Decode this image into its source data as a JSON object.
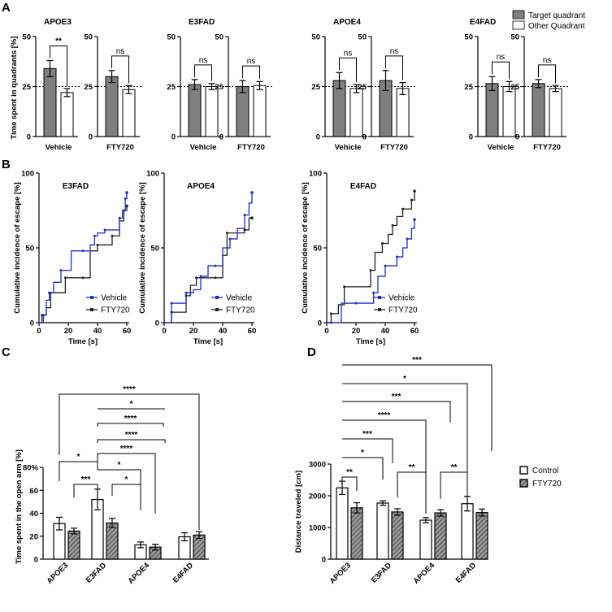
{
  "panels": {
    "a": "A",
    "b": "B",
    "c": "C",
    "d": "D"
  },
  "colors": {
    "gray_bar": "#7f7f7f",
    "vehicle_line": "#1f2ec7",
    "fty_line": "#222222",
    "hatch": "#555555"
  },
  "panel_a": {
    "ylabel": "Time spent in quadrants [%]",
    "legend": [
      "Target quadrant",
      "Other Quadrant"
    ],
    "genotypes": [
      "APOE3",
      "E3FAD",
      "APOE4",
      "E4FAD"
    ],
    "conditions": [
      "Vehicle",
      "FTY720"
    ],
    "yticks": [
      "0",
      "25",
      "50"
    ]
  },
  "chart_data": [
    {
      "type": "bar",
      "panel": "A",
      "title": "Time spent in quadrants",
      "ylabel": "Time spent in quadrants [%]",
      "ylim": [
        0,
        50
      ],
      "reference_line": 25,
      "series_names": [
        "Target quadrant",
        "Other Quadrant"
      ],
      "groups": [
        {
          "genotype": "APOE3",
          "condition": "Vehicle",
          "target": 34,
          "target_err": 4,
          "other": 22,
          "other_err": 2,
          "sig": "**"
        },
        {
          "genotype": "APOE3",
          "condition": "FTY720",
          "target": 30,
          "target_err": 3,
          "other": 23.5,
          "other_err": 2,
          "sig": "ns"
        },
        {
          "genotype": "E3FAD",
          "condition": "Vehicle",
          "target": 26,
          "target_err": 2.5,
          "other": 25,
          "other_err": 1.5,
          "sig": "ns"
        },
        {
          "genotype": "E3FAD",
          "condition": "FTY720",
          "target": 25,
          "target_err": 3,
          "other": 25.5,
          "other_err": 2,
          "sig": "ns"
        },
        {
          "genotype": "APOE4",
          "condition": "Vehicle",
          "target": 28,
          "target_err": 4,
          "other": 24,
          "other_err": 2,
          "sig": "ns"
        },
        {
          "genotype": "APOE4",
          "condition": "FTY720",
          "target": 28,
          "target_err": 5,
          "other": 24,
          "other_err": 3,
          "sig": "ns"
        },
        {
          "genotype": "E4FAD",
          "condition": "Vehicle",
          "target": 26.5,
          "target_err": 3.5,
          "other": 25,
          "other_err": 2.5,
          "sig": "ns"
        },
        {
          "genotype": "E4FAD",
          "condition": "FTY720",
          "target": 26.5,
          "target_err": 2,
          "other": 24,
          "other_err": 1.5,
          "sig": "ns"
        }
      ]
    },
    {
      "type": "line",
      "panel": "B",
      "xlabel": "Time [s]",
      "ylabel": "Cumulative incidence of escape [%]",
      "xlim": [
        0,
        60
      ],
      "ylim": [
        0,
        100
      ],
      "xticks": [
        "0",
        "20",
        "40",
        "60"
      ],
      "yticks": [
        "0",
        "50",
        "100"
      ],
      "legend": [
        "Vehicle",
        "FTY720"
      ],
      "plots": [
        {
          "title": "E3FAD",
          "series": [
            {
              "name": "Vehicle",
              "x": [
                0,
                3,
                5,
                7,
                10,
                15,
                22,
                30,
                35,
                38,
                40,
                45,
                50,
                55,
                57,
                59,
                60
              ],
              "y": [
                0,
                5,
                15,
                20,
                27,
                35,
                48,
                48,
                52,
                58,
                60,
                62,
                62,
                70,
                75,
                83,
                87
              ]
            },
            {
              "name": "FTY720",
              "x": [
                0,
                2,
                5,
                8,
                10,
                18,
                22,
                30,
                35,
                40,
                45,
                50,
                55,
                58,
                60
              ],
              "y": [
                0,
                5,
                10,
                20,
                20,
                30,
                30,
                30,
                48,
                52,
                52,
                58,
                68,
                75,
                78
              ]
            }
          ]
        },
        {
          "title": "APOE4",
          "series": [
            {
              "name": "Vehicle",
              "x": [
                0,
                5,
                10,
                15,
                20,
                25,
                30,
                35,
                40,
                45,
                50,
                55,
                58,
                60
              ],
              "y": [
                0,
                13,
                13,
                20,
                22,
                31,
                38,
                38,
                50,
                56,
                63,
                72,
                80,
                87
              ]
            },
            {
              "name": "FTY720",
              "x": [
                0,
                5,
                10,
                15,
                18,
                22,
                28,
                35,
                40,
                43,
                50,
                55,
                58,
                60
              ],
              "y": [
                0,
                7,
                7,
                18,
                25,
                30,
                30,
                30,
                45,
                60,
                60,
                62,
                70,
                70
              ]
            }
          ]
        },
        {
          "title": "E4FAD",
          "series": [
            {
              "name": "Vehicle",
              "x": [
                0,
                3,
                10,
                20,
                28,
                32,
                35,
                40,
                45,
                48,
                52,
                55,
                58,
                60
              ],
              "y": [
                0,
                0,
                13,
                13,
                13,
                20,
                31,
                38,
                38,
                44,
                50,
                56,
                63,
                69
              ]
            },
            {
              "name": "FTY720",
              "x": [
                0,
                3,
                8,
                12,
                20,
                30,
                33,
                38,
                42,
                45,
                48,
                52,
                55,
                58,
                60
              ],
              "y": [
                0,
                6,
                12,
                24,
                24,
                35,
                47,
                53,
                59,
                65,
                71,
                76,
                76,
                82,
                88
              ]
            }
          ]
        }
      ]
    },
    {
      "type": "bar",
      "panel": "C",
      "ylabel": "Time spent in the open arm [%]",
      "ylim": [
        0,
        80
      ],
      "yticks": [
        "0",
        "20",
        "40",
        "60",
        "80%"
      ],
      "categories": [
        "APOE3",
        "E3FAD",
        "APOE4",
        "E4FAD"
      ],
      "series": [
        {
          "name": "Control",
          "values": [
            31,
            52,
            12.5,
            19.5
          ],
          "errors": [
            5.5,
            9,
            2.5,
            3.5
          ]
        },
        {
          "name": "FTY720",
          "values": [
            24.5,
            31.5,
            10.5,
            21
          ],
          "errors": [
            2.5,
            4,
            2.5,
            3
          ]
        }
      ],
      "comparisons": [
        {
          "label": "***"
        },
        {
          "label": "*"
        },
        {
          "label": "*"
        },
        {
          "label": "*"
        },
        {
          "label": "****"
        },
        {
          "label": "****"
        },
        {
          "label": "****"
        },
        {
          "label": "*"
        },
        {
          "label": "****"
        }
      ]
    },
    {
      "type": "bar",
      "panel": "D",
      "ylabel": "Distance traveled [cm]",
      "ylim": [
        0,
        3000
      ],
      "yticks": [
        "0",
        "1000",
        "2000",
        "3000"
      ],
      "categories": [
        "APOE3",
        "E3FAD",
        "APOE4",
        "E4FAD"
      ],
      "legend": [
        "Control",
        "FTY720"
      ],
      "series": [
        {
          "name": "Control",
          "values": [
            2250,
            1770,
            1230,
            1750
          ],
          "errors": [
            210,
            70,
            80,
            230
          ]
        },
        {
          "name": "FTY720",
          "values": [
            1620,
            1490,
            1460,
            1470
          ],
          "errors": [
            160,
            100,
            100,
            110
          ]
        }
      ],
      "comparisons": [
        {
          "label": "**"
        },
        {
          "label": "**"
        },
        {
          "label": "**"
        },
        {
          "label": "*"
        },
        {
          "label": "***"
        },
        {
          "label": "****"
        },
        {
          "label": "***"
        },
        {
          "label": "*"
        },
        {
          "label": "***"
        }
      ]
    }
  ]
}
